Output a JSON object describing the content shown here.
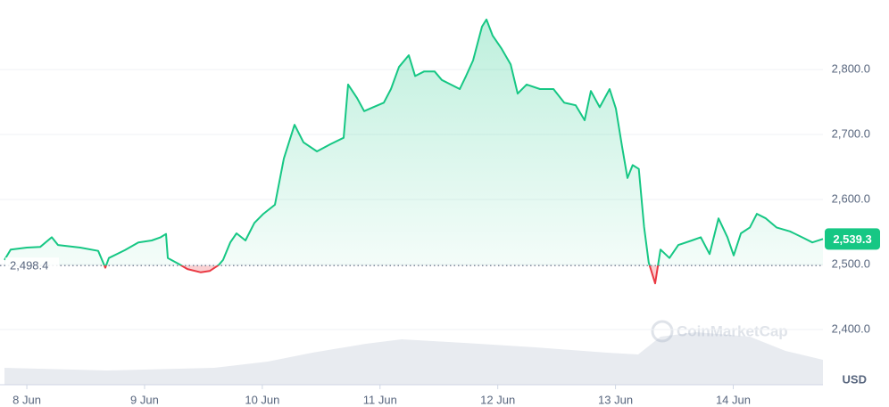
{
  "chart_data": {
    "type": "line",
    "x": [
      -0.19,
      -0.137,
      0.0,
      0.113,
      0.212,
      0.265,
      0.454,
      0.606,
      0.667,
      0.697,
      0.833,
      0.947,
      1.061,
      1.137,
      1.182,
      1.197,
      1.288,
      1.364,
      1.478,
      1.553,
      1.629,
      1.667,
      1.728,
      1.781,
      1.857,
      1.933,
      2.009,
      2.107,
      2.183,
      2.274,
      2.35,
      2.464,
      2.577,
      2.691,
      2.729,
      2.805,
      2.865,
      2.941,
      3.032,
      3.093,
      3.161,
      3.244,
      3.298,
      3.373,
      3.464,
      3.525,
      3.601,
      3.677,
      3.73,
      3.79,
      3.866,
      3.904,
      3.957,
      4.033,
      4.109,
      4.169,
      4.245,
      4.359,
      4.473,
      4.564,
      4.662,
      4.738,
      4.791,
      4.866,
      4.95,
      5.003,
      5.056,
      5.102,
      5.146,
      5.198,
      5.243,
      5.282,
      5.337,
      5.382,
      5.458,
      5.534,
      5.648,
      5.724,
      5.799,
      5.875,
      5.951,
      6.004,
      6.065,
      6.141,
      6.201,
      6.277,
      6.368,
      6.482,
      6.596,
      6.672,
      6.762
    ],
    "values": [
      2507,
      2523,
      2526,
      2527,
      2542,
      2530,
      2526,
      2521,
      2495,
      2510,
      2522,
      2534,
      2537,
      2542,
      2547,
      2510,
      2501,
      2493,
      2488,
      2490,
      2499,
      2507,
      2534,
      2548,
      2537,
      2564,
      2578,
      2592,
      2663,
      2715,
      2688,
      2674,
      2685,
      2695,
      2777,
      2756,
      2736,
      2742,
      2749,
      2770,
      2804,
      2822,
      2790,
      2797,
      2797,
      2784,
      2777,
      2770,
      2790,
      2814,
      2866,
      2877,
      2852,
      2832,
      2808,
      2763,
      2777,
      2770,
      2770,
      2749,
      2745,
      2722,
      2767,
      2742,
      2770,
      2740,
      2681,
      2633,
      2653,
      2647,
      2558,
      2503,
      2471,
      2523,
      2510,
      2530,
      2537,
      2542,
      2516,
      2571,
      2542,
      2514,
      2548,
      2557,
      2578,
      2571,
      2557,
      2551,
      2541,
      2534,
      2539.3
    ],
    "color_up": "#16c784",
    "color_down": "#ea3943",
    "xlim": [
      -0.19,
      6.762
    ],
    "ylim": [
      2315,
      2907
    ],
    "xticks": [
      {
        "value": 0,
        "label": "8 Jun"
      },
      {
        "value": 1,
        "label": "9 Jun"
      },
      {
        "value": 2,
        "label": "10 Jun"
      },
      {
        "value": 3,
        "label": "11 Jun"
      },
      {
        "value": 4,
        "label": "12 Jun"
      },
      {
        "value": 5,
        "label": "13 Jun"
      },
      {
        "value": 6,
        "label": "14 Jun"
      }
    ],
    "yticks": [
      {
        "value": 2400,
        "label": "2,400.0"
      },
      {
        "value": 2500,
        "label": "2,500.0"
      },
      {
        "value": 2600,
        "label": "2,600.0"
      },
      {
        "value": 2700,
        "label": "2,700.0"
      },
      {
        "value": 2800,
        "label": "2,800.0"
      }
    ],
    "baseline": {
      "value": 2498.4,
      "label": "2,498.4"
    },
    "last_price": {
      "value": 2539.3,
      "label": "2,539.3"
    },
    "currency": "USD",
    "watermark": "CoinMarketCap",
    "grid": true
  }
}
